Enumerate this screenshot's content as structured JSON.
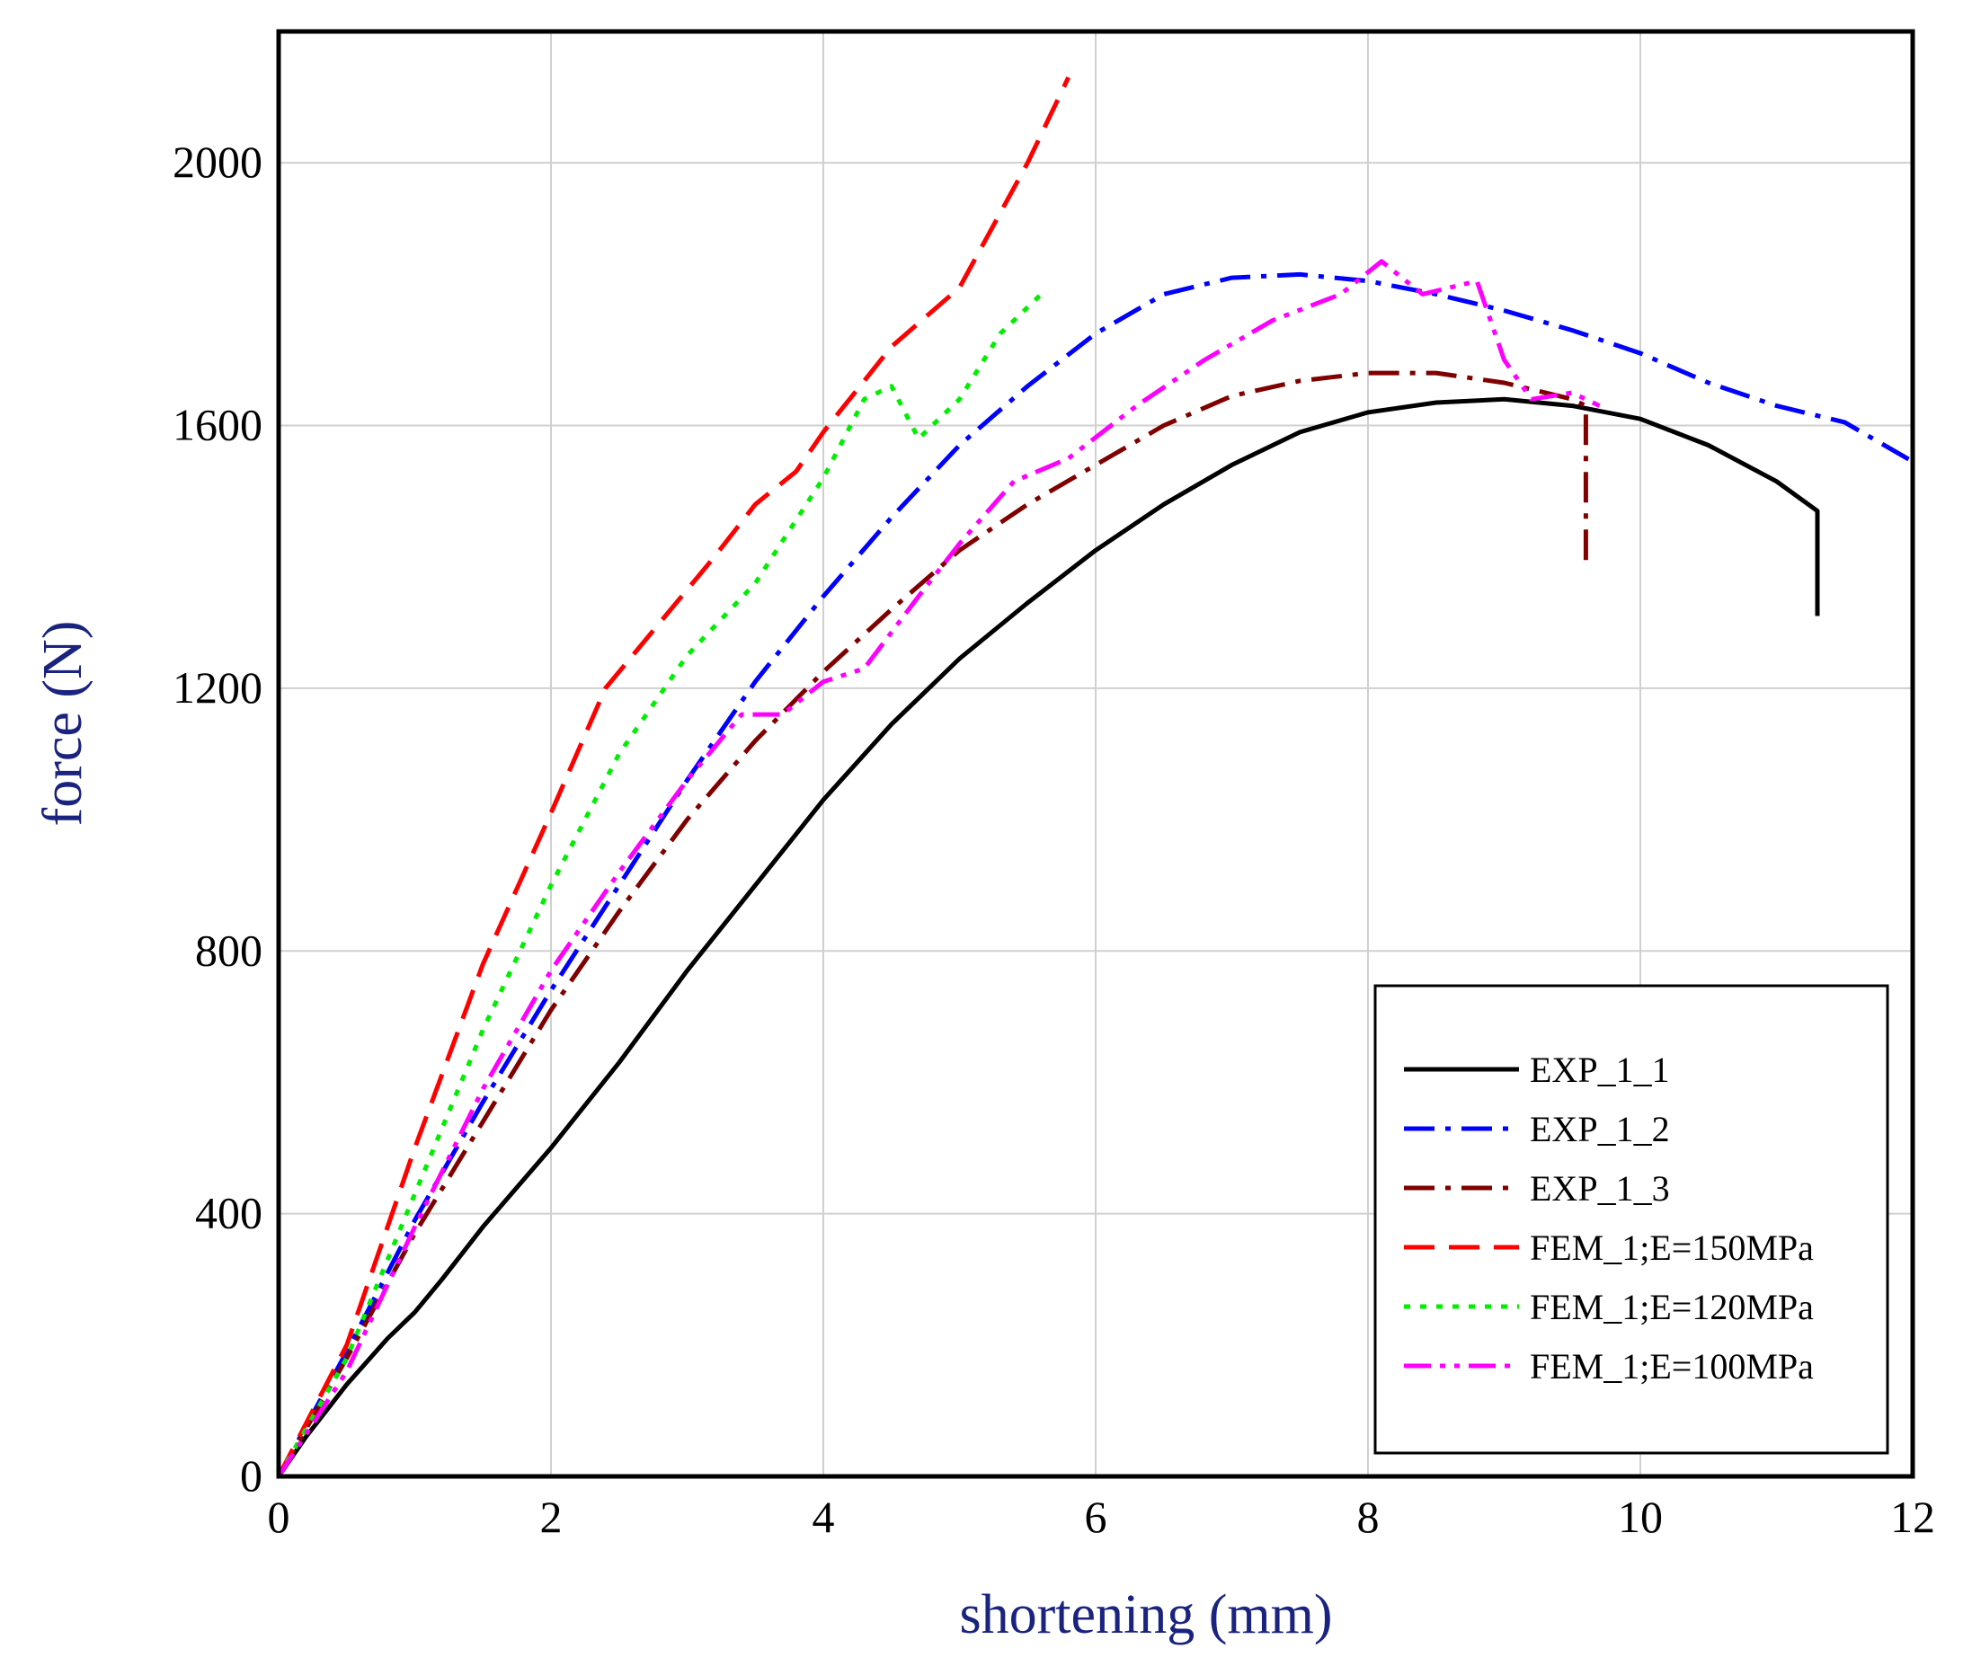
{
  "chart_data": {
    "type": "line",
    "title": "",
    "xlabel": "shortening (mm)",
    "ylabel": "force (N)",
    "xlim": [
      0,
      12
    ],
    "ylim": [
      0,
      2200
    ],
    "xticks": [
      0,
      2,
      4,
      6,
      8,
      10,
      12
    ],
    "yticks": [
      0,
      400,
      800,
      1200,
      1600,
      2000
    ],
    "grid": true,
    "legend_position": "bottom-right",
    "colors": {
      "axis_title": "#1a237e",
      "grid": "#d0d0d0",
      "frame": "#000000"
    },
    "series": [
      {
        "name": "EXP_1_1",
        "color": "#000000",
        "dash": "solid",
        "points": [
          [
            0,
            0
          ],
          [
            0.2,
            60
          ],
          [
            0.5,
            140
          ],
          [
            0.8,
            210
          ],
          [
            1.0,
            250
          ],
          [
            1.2,
            300
          ],
          [
            1.5,
            380
          ],
          [
            2.0,
            500
          ],
          [
            2.5,
            630
          ],
          [
            3.0,
            770
          ],
          [
            3.5,
            900
          ],
          [
            4.0,
            1030
          ],
          [
            4.5,
            1145
          ],
          [
            5.0,
            1245
          ],
          [
            5.5,
            1330
          ],
          [
            6.0,
            1410
          ],
          [
            6.5,
            1480
          ],
          [
            7.0,
            1540
          ],
          [
            7.5,
            1590
          ],
          [
            8.0,
            1620
          ],
          [
            8.5,
            1635
          ],
          [
            9.0,
            1640
          ],
          [
            9.5,
            1630
          ],
          [
            10.0,
            1610
          ],
          [
            10.5,
            1570
          ],
          [
            11.0,
            1515
          ],
          [
            11.3,
            1470
          ],
          [
            11.3,
            1310
          ]
        ]
      },
      {
        "name": "EXP_1_2",
        "color": "#0000ff",
        "dash": "dashdot",
        "points": [
          [
            0,
            0
          ],
          [
            0.5,
            190
          ],
          [
            1.0,
            390
          ],
          [
            1.5,
            570
          ],
          [
            2.0,
            740
          ],
          [
            2.5,
            900
          ],
          [
            3.0,
            1060
          ],
          [
            3.5,
            1210
          ],
          [
            4.0,
            1340
          ],
          [
            4.5,
            1460
          ],
          [
            5.0,
            1570
          ],
          [
            5.5,
            1660
          ],
          [
            6.0,
            1740
          ],
          [
            6.5,
            1800
          ],
          [
            7.0,
            1825
          ],
          [
            7.5,
            1830
          ],
          [
            8.0,
            1820
          ],
          [
            8.5,
            1800
          ],
          [
            9.0,
            1775
          ],
          [
            9.5,
            1745
          ],
          [
            10.0,
            1710
          ],
          [
            10.5,
            1665
          ],
          [
            11.0,
            1630
          ],
          [
            11.5,
            1605
          ],
          [
            12.0,
            1545
          ]
        ]
      },
      {
        "name": "EXP_1_3",
        "color": "#800000",
        "dash": "dashdot",
        "points": [
          [
            0,
            0
          ],
          [
            0.5,
            180
          ],
          [
            1.0,
            370
          ],
          [
            1.5,
            540
          ],
          [
            2.0,
            710
          ],
          [
            2.5,
            860
          ],
          [
            3.0,
            1000
          ],
          [
            3.5,
            1120
          ],
          [
            4.0,
            1225
          ],
          [
            4.5,
            1320
          ],
          [
            5.0,
            1410
          ],
          [
            5.5,
            1480
          ],
          [
            6.0,
            1540
          ],
          [
            6.5,
            1600
          ],
          [
            7.0,
            1645
          ],
          [
            7.5,
            1668
          ],
          [
            8.0,
            1680
          ],
          [
            8.5,
            1680
          ],
          [
            9.0,
            1665
          ],
          [
            9.5,
            1640
          ],
          [
            9.6,
            1630
          ],
          [
            9.6,
            1390
          ]
        ]
      },
      {
        "name": "FEM_1;E=150MPa",
        "color": "#ff0000",
        "dash": "dash",
        "points": [
          [
            0,
            0
          ],
          [
            0.5,
            200
          ],
          [
            1.0,
            500
          ],
          [
            1.5,
            780
          ],
          [
            2.0,
            1010
          ],
          [
            2.4,
            1200
          ],
          [
            2.8,
            1300
          ],
          [
            3.2,
            1400
          ],
          [
            3.5,
            1480
          ],
          [
            3.8,
            1530
          ],
          [
            4.0,
            1590
          ],
          [
            4.5,
            1720
          ],
          [
            5.0,
            1810
          ],
          [
            5.5,
            2000
          ],
          [
            5.8,
            2130
          ]
        ]
      },
      {
        "name": "FEM_1;E=120MPa",
        "color": "#00ee00",
        "dash": "dot",
        "points": [
          [
            0,
            0
          ],
          [
            0.5,
            180
          ],
          [
            1.0,
            430
          ],
          [
            1.5,
            680
          ],
          [
            2.0,
            900
          ],
          [
            2.5,
            1100
          ],
          [
            3.0,
            1250
          ],
          [
            3.5,
            1360
          ],
          [
            4.0,
            1520
          ],
          [
            4.3,
            1640
          ],
          [
            4.5,
            1660
          ],
          [
            4.7,
            1580
          ],
          [
            5.0,
            1640
          ],
          [
            5.3,
            1740
          ],
          [
            5.6,
            1800
          ]
        ]
      },
      {
        "name": "FEM_1;E=100MPa",
        "color": "#ff00ff",
        "dash": "dashdotdot",
        "points": [
          [
            0,
            0
          ],
          [
            0.5,
            160
          ],
          [
            1.0,
            380
          ],
          [
            1.5,
            590
          ],
          [
            2.0,
            770
          ],
          [
            2.5,
            920
          ],
          [
            3.0,
            1060
          ],
          [
            3.4,
            1160
          ],
          [
            3.7,
            1160
          ],
          [
            4.0,
            1210
          ],
          [
            4.3,
            1230
          ],
          [
            4.7,
            1340
          ],
          [
            5.0,
            1420
          ],
          [
            5.4,
            1515
          ],
          [
            5.8,
            1550
          ],
          [
            6.3,
            1630
          ],
          [
            6.8,
            1700
          ],
          [
            7.3,
            1760
          ],
          [
            7.8,
            1800
          ],
          [
            8.1,
            1850
          ],
          [
            8.4,
            1800
          ],
          [
            8.8,
            1820
          ],
          [
            9.0,
            1700
          ],
          [
            9.2,
            1640
          ],
          [
            9.5,
            1650
          ],
          [
            9.7,
            1630
          ]
        ]
      }
    ]
  }
}
